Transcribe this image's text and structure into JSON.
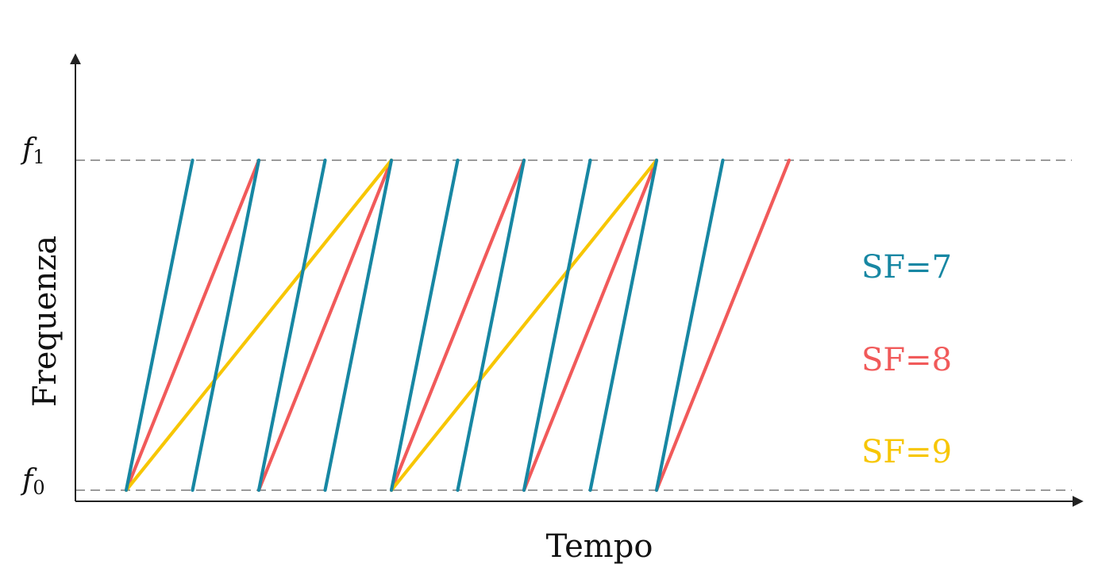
{
  "diagram": {
    "x_axis_label": "Tempo",
    "y_axis_label": "Frequenza",
    "f1_label": {
      "base": "f",
      "sub": "1"
    },
    "f0_label": {
      "base": "f",
      "sub": "0"
    },
    "legend": [
      {
        "text": "SF=7",
        "color": "#1787a3"
      },
      {
        "text": "SF=8",
        "color": "#f15a5a"
      },
      {
        "text": "SF=9",
        "color": "#f7c600"
      }
    ],
    "colors": {
      "sf7": "#1787a3",
      "sf8": "#f15a5a",
      "sf9": "#f7c600",
      "axis": "#222222",
      "reference": "#7a7a7a"
    },
    "chirp_counts": {
      "sf7": 9,
      "sf8": 5,
      "sf9": 2
    }
  }
}
